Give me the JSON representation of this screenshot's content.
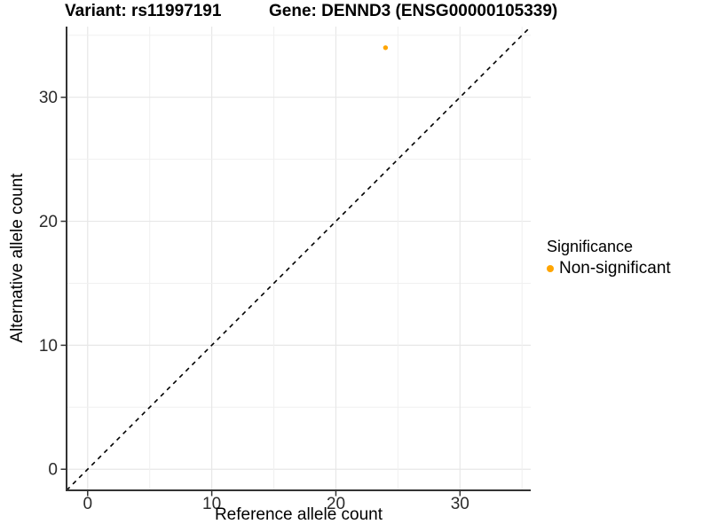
{
  "chart_data": {
    "type": "scatter",
    "title_left": "Variant: rs11997191",
    "title_right": "Gene: DENND3 (ENSG00000105339)",
    "xlabel": "Reference allele count",
    "ylabel": "Alternative allele count",
    "xlim": [
      -1.7,
      35.7
    ],
    "ylim": [
      -1.7,
      35.7
    ],
    "xticks": [
      0,
      10,
      20,
      30
    ],
    "yticks": [
      0,
      10,
      20,
      30
    ],
    "grid": true,
    "grid_step": 5,
    "points": [
      {
        "x": 24,
        "y": 34,
        "series": "Non-significant"
      }
    ],
    "reference_line": {
      "kind": "identity",
      "style": "dashed",
      "color": "#000000"
    },
    "legend": {
      "title": "Significance",
      "position": "right",
      "items": [
        {
          "label": "Non-significant",
          "color": "#FFA500"
        }
      ]
    },
    "theme": {
      "background": "#FFFFFF",
      "grid_major_color": "#E7E7E7",
      "grid_minor_color": "#F0F0F0",
      "axis_line_color": "#333333",
      "tick_color": "#333333",
      "tick_label_color": "#2b2b2b"
    }
  }
}
